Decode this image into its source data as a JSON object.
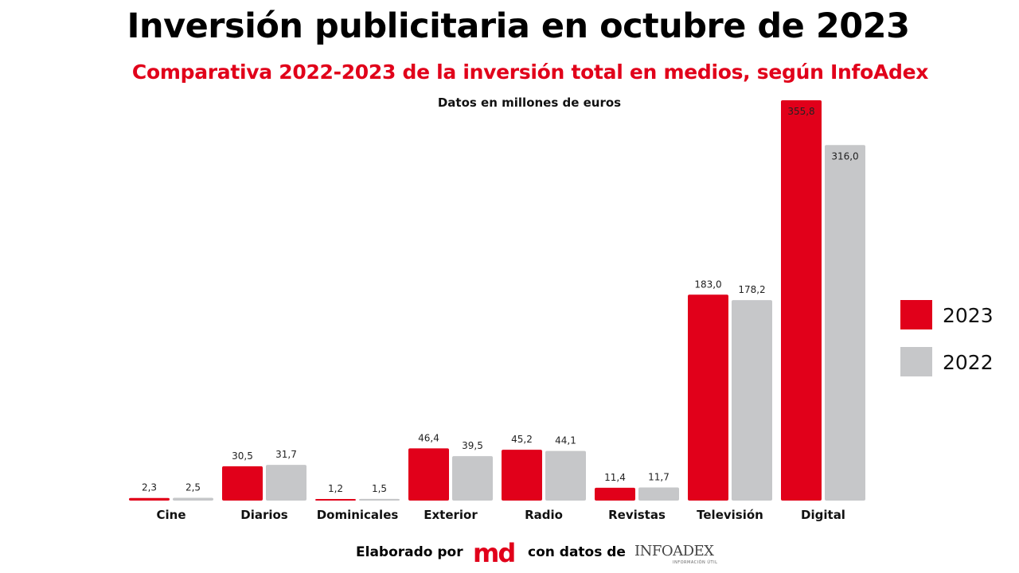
{
  "header": {
    "title": "Inversión publicitaria en octubre de 2023",
    "subtitle": "Comparativa 2022-2023 de la inversión total en medios, según InfoAdex",
    "note": "Datos en millones de euros"
  },
  "colors": {
    "series_2023": "#e1001a",
    "series_2022": "#c6c7c9"
  },
  "chart_data": {
    "type": "bar",
    "categories": [
      "Cine",
      "Diarios",
      "Dominicales",
      "Exterior",
      "Radio",
      "Revistas",
      "Televisión",
      "Digital"
    ],
    "series": [
      {
        "name": "2023",
        "values": [
          2.3,
          30.5,
          1.2,
          46.4,
          45.2,
          11.4,
          183.0,
          355.8
        ],
        "labels": [
          "2,3",
          "30,5",
          "1,2",
          "46,4",
          "45,2",
          "11,4",
          "183,0",
          "355,8"
        ]
      },
      {
        "name": "2022",
        "values": [
          2.5,
          31.7,
          1.5,
          39.5,
          44.1,
          11.7,
          178.2,
          316.0
        ],
        "labels": [
          "2,5",
          "31,7",
          "1,5",
          "39,5",
          "44,1",
          "11,7",
          "178,2",
          "316,0"
        ]
      }
    ],
    "ylim": [
      0,
      355.8
    ],
    "grid": false,
    "legend_position": "right"
  },
  "footer": {
    "prefix": "Elaborado por",
    "logo_md": "md",
    "middle": "con datos de",
    "logo_infoadex": "INFOADEX",
    "logo_infoadex_tagline": "INFORMACIÓN ÚTIL"
  }
}
